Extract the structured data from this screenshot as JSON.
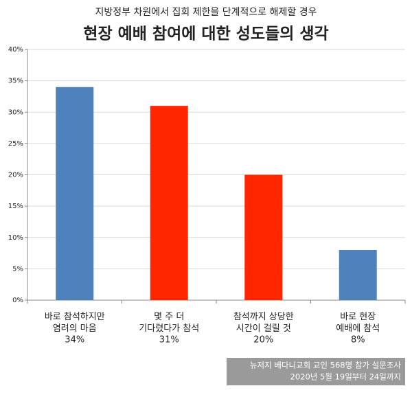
{
  "chart_data": {
    "type": "bar",
    "subtitle": "지방정부 차원에서 집회 제한을 단계적으로 해제할 경우",
    "title": "현장 예배 참여에 대한 성도들의 생각",
    "categories": [
      "바로 참석하지만\n염려의 마음",
      "몇 주 더\n기다렸다가 참석",
      "참석까지 상당한\n시간이 걸릴 것",
      "바로 현장\n예배에 참석"
    ],
    "values": [
      34,
      31,
      20,
      8
    ],
    "value_labels": [
      "34%",
      "31%",
      "20%",
      "8%"
    ],
    "colors": [
      "#4f81bd",
      "#ff2600",
      "#ff2600",
      "#4f81bd"
    ],
    "ylim": [
      0,
      40
    ],
    "yticks": [
      {
        "value": 0,
        "label": "0%"
      },
      {
        "value": 5,
        "label": "5%"
      },
      {
        "value": 10,
        "label": "10%"
      },
      {
        "value": 15,
        "label": "15%"
      },
      {
        "value": 20,
        "label": "20%"
      },
      {
        "value": 25,
        "label": "25%"
      },
      {
        "value": 30,
        "label": "30%"
      },
      {
        "value": 35,
        "label": "35%"
      },
      {
        "value": 40,
        "label": "40%"
      }
    ],
    "grid": true,
    "source": [
      "뉴저지 베다니교회 교인 568명 참가 설문조사",
      "2020년 5월 19일부터 24일까지"
    ]
  }
}
